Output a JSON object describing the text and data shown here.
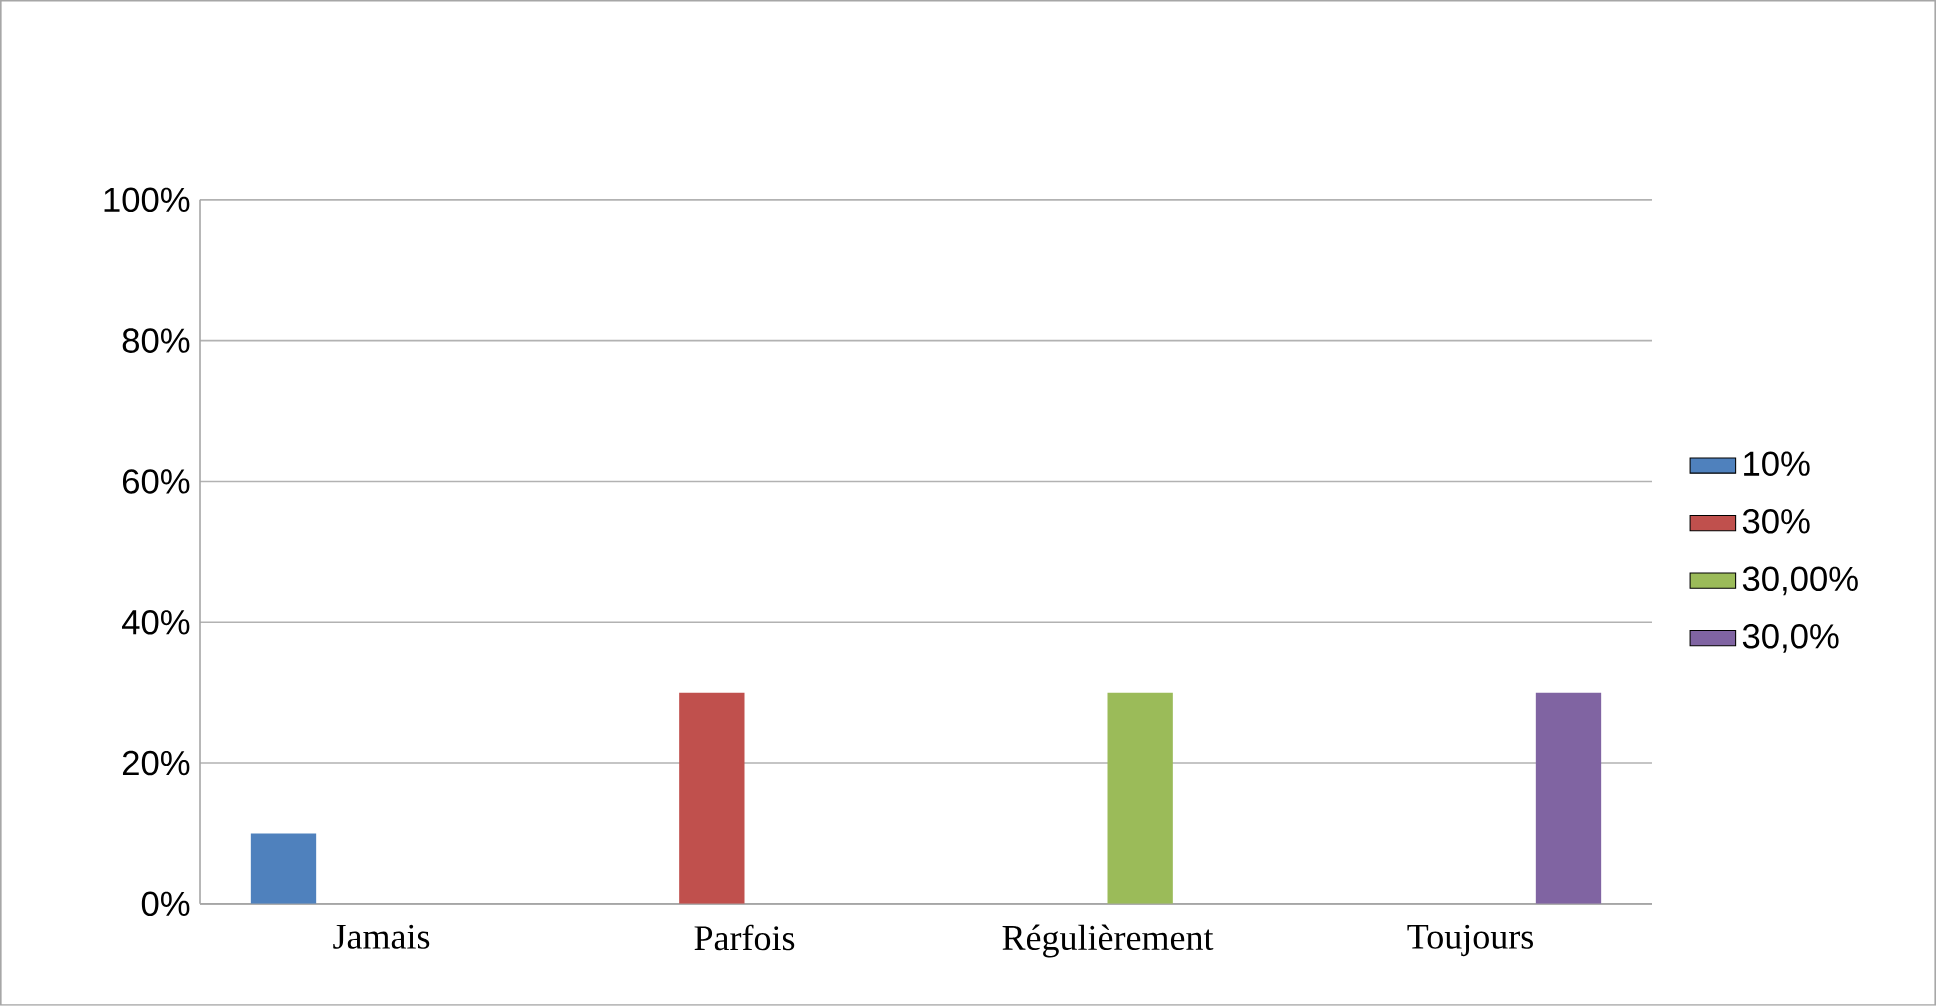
{
  "chart_data": {
    "type": "bar",
    "categories": [
      "Jamais",
      "Parfois",
      "Régulièrement",
      "Toujours"
    ],
    "series": [
      {
        "name": "10%",
        "color": "#4f81bd",
        "values": [
          10,
          null,
          null,
          null
        ]
      },
      {
        "name": "30%",
        "color": "#c0504d",
        "values": [
          null,
          30,
          null,
          null
        ]
      },
      {
        "name": "30,00%",
        "color": "#9bbb59",
        "values": [
          null,
          null,
          30,
          null
        ]
      },
      {
        "name": "30,0%",
        "color": "#8064a2",
        "values": [
          null,
          null,
          null,
          30
        ]
      }
    ],
    "ylim": [
      0,
      100
    ],
    "yticks": [
      {
        "value": 0,
        "label": "0%"
      },
      {
        "value": 20,
        "label": "20%"
      },
      {
        "value": 40,
        "label": "40%"
      },
      {
        "value": 60,
        "label": "60%"
      },
      {
        "value": 80,
        "label": "80%"
      },
      {
        "value": 100,
        "label": "100%"
      }
    ],
    "grid": "y",
    "legend": "right"
  }
}
